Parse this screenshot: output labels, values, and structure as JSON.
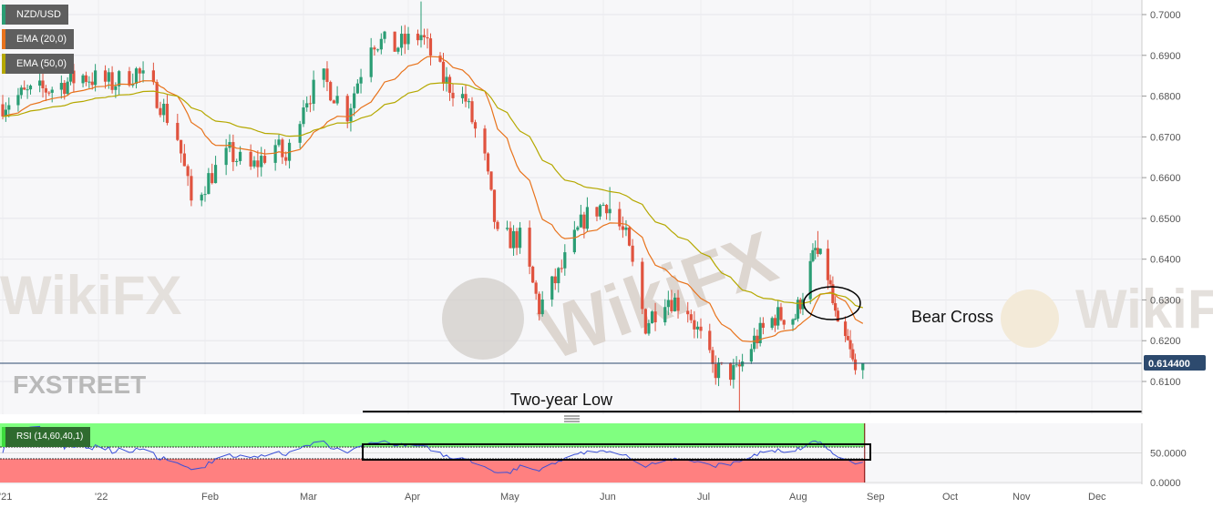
{
  "chart_data": {
    "type": "candlestick",
    "symbol": "NZD/USD",
    "indicators": [
      {
        "name": "EMA (20,0)",
        "color": "#e8731c"
      },
      {
        "name": "EMA (50,0)",
        "color": "#b5a800"
      }
    ],
    "rsi": {
      "label": "RSI (14,60,40,1)",
      "upper": 60,
      "lower": 40,
      "upper_zone_color": "#80ff80",
      "lower_zone_color": "#ff8080",
      "line_color": "#3a4fd8",
      "ylim": [
        0,
        100
      ],
      "ticks": [
        "50.0000",
        "0.0000"
      ]
    },
    "ylim": [
      0.6,
      0.704
    ],
    "y_ticks": [
      "0.7000",
      "0.6900",
      "0.6800",
      "0.6700",
      "0.6600",
      "0.6500",
      "0.6400",
      "0.6300",
      "0.6200",
      "0.6100"
    ],
    "x_ticks": [
      "'21",
      "'22",
      "Feb",
      "Mar",
      "Apr",
      "May",
      "Jun",
      "Jul",
      "Aug",
      "Sep",
      "Oct",
      "Nov",
      "Dec"
    ],
    "last_price": "0.614400",
    "up_color": "#2a9d74",
    "down_color": "#e0533f",
    "close_path": [
      [
        "2021-12-01",
        0.678
      ],
      [
        "2021-12-06",
        0.68
      ],
      [
        "2021-12-17",
        0.682
      ],
      [
        "2021-12-27",
        0.685
      ],
      [
        "2022-01-05",
        0.683
      ],
      [
        "2022-01-12",
        0.686
      ],
      [
        "2022-01-18",
        0.68
      ],
      [
        "2022-01-24",
        0.67
      ],
      [
        "2022-01-28",
        0.654
      ],
      [
        "2022-02-03",
        0.661
      ],
      [
        "2022-02-08",
        0.666
      ],
      [
        "2022-02-14",
        0.662
      ],
      [
        "2022-02-21",
        0.668
      ],
      [
        "2022-02-24",
        0.664
      ],
      [
        "2022-03-01",
        0.679
      ],
      [
        "2022-03-07",
        0.684
      ],
      [
        "2022-03-14",
        0.676
      ],
      [
        "2022-03-21",
        0.694
      ],
      [
        "2022-03-28",
        0.692
      ],
      [
        "2022-04-05",
        0.695
      ],
      [
        "2022-04-12",
        0.684
      ],
      [
        "2022-04-19",
        0.679
      ],
      [
        "2022-04-25",
        0.664
      ],
      [
        "2022-04-29",
        0.645
      ],
      [
        "2022-05-06",
        0.645
      ],
      [
        "2022-05-12",
        0.628
      ],
      [
        "2022-05-18",
        0.636
      ],
      [
        "2022-05-26",
        0.65
      ],
      [
        "2022-06-02",
        0.654
      ],
      [
        "2022-06-08",
        0.645
      ],
      [
        "2022-06-14",
        0.624
      ],
      [
        "2022-06-20",
        0.631
      ],
      [
        "2022-06-27",
        0.628
      ],
      [
        "2022-07-05",
        0.613
      ],
      [
        "2022-07-13",
        0.612
      ],
      [
        "2022-07-19",
        0.62
      ],
      [
        "2022-07-26",
        0.626
      ],
      [
        "2022-08-02",
        0.626
      ],
      [
        "2022-08-10",
        0.642
      ],
      [
        "2022-08-15",
        0.636
      ],
      [
        "2022-08-19",
        0.622
      ],
      [
        "2022-08-23",
        0.619
      ],
      [
        "2022-08-26",
        0.612
      ],
      [
        "2022-08-29",
        0.6144
      ]
    ],
    "annotations": {
      "bear_cross": "Bear Cross",
      "two_year_low": "Two-year Low",
      "two_year_low_level": 0.6026
    }
  },
  "branding": {
    "logo": "FXSTREET",
    "watermark": "WikiFX"
  }
}
